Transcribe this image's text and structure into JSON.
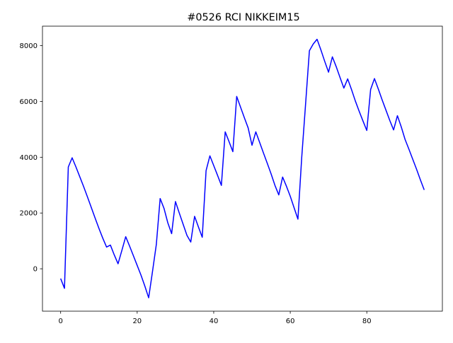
{
  "chart_data": {
    "type": "line",
    "title": "#0526 RCI NIKKEIM15",
    "xlabel": "",
    "ylabel": "",
    "xlim": [
      -4.75,
      99.75
    ],
    "ylim": [
      -1520,
      8700
    ],
    "xticks": [
      0,
      20,
      40,
      60,
      80
    ],
    "yticks": [
      0,
      2000,
      4000,
      6000,
      8000
    ],
    "grid": false,
    "colors": {
      "line": "#0000ff",
      "axes": "#000000",
      "background": "#ffffff"
    },
    "series": [
      {
        "x": [
          0,
          1,
          2,
          3,
          4,
          5,
          6,
          7,
          8,
          9,
          10,
          11,
          12,
          13,
          14,
          15,
          16,
          17,
          18,
          19,
          20,
          21,
          22,
          23,
          24,
          25,
          26,
          27,
          28,
          29,
          30,
          31,
          32,
          33,
          34,
          35,
          36,
          37,
          38,
          39,
          40,
          41,
          42,
          43,
          44,
          45,
          46,
          47,
          48,
          49,
          50,
          51,
          52,
          53,
          54,
          55,
          56,
          57,
          58,
          59,
          60,
          61,
          62,
          63,
          64,
          65,
          66,
          67,
          68,
          69,
          70,
          71,
          72,
          73,
          74,
          75,
          76,
          77,
          78,
          79,
          80,
          81,
          82,
          83,
          84,
          85,
          86,
          87,
          88,
          89,
          90,
          91,
          92,
          93,
          94,
          95
        ],
        "values": [
          -350,
          -700,
          3650,
          3980,
          3650,
          3300,
          2950,
          2580,
          2200,
          1820,
          1450,
          1100,
          780,
          850,
          500,
          180,
          660,
          1150,
          820,
          470,
          120,
          -230,
          -620,
          -1040,
          -100,
          870,
          2520,
          2170,
          1650,
          1260,
          2410,
          2000,
          1600,
          1200,
          960,
          1880,
          1500,
          1130,
          3520,
          4050,
          3700,
          3350,
          2990,
          4910,
          4560,
          4200,
          6180,
          5800,
          5420,
          5050,
          4430,
          4910,
          4530,
          4150,
          3780,
          3400,
          2990,
          2650,
          3290,
          2960,
          2600,
          2190,
          1780,
          4000,
          5900,
          7820,
          8060,
          8230,
          7850,
          7440,
          7050,
          7600,
          7250,
          6860,
          6480,
          6810,
          6430,
          6020,
          5650,
          5300,
          4960,
          6430,
          6820,
          6450,
          6060,
          5690,
          5320,
          4980,
          5490,
          5090,
          4640,
          4290,
          3930,
          3570,
          3190,
          2830
        ]
      }
    ]
  }
}
